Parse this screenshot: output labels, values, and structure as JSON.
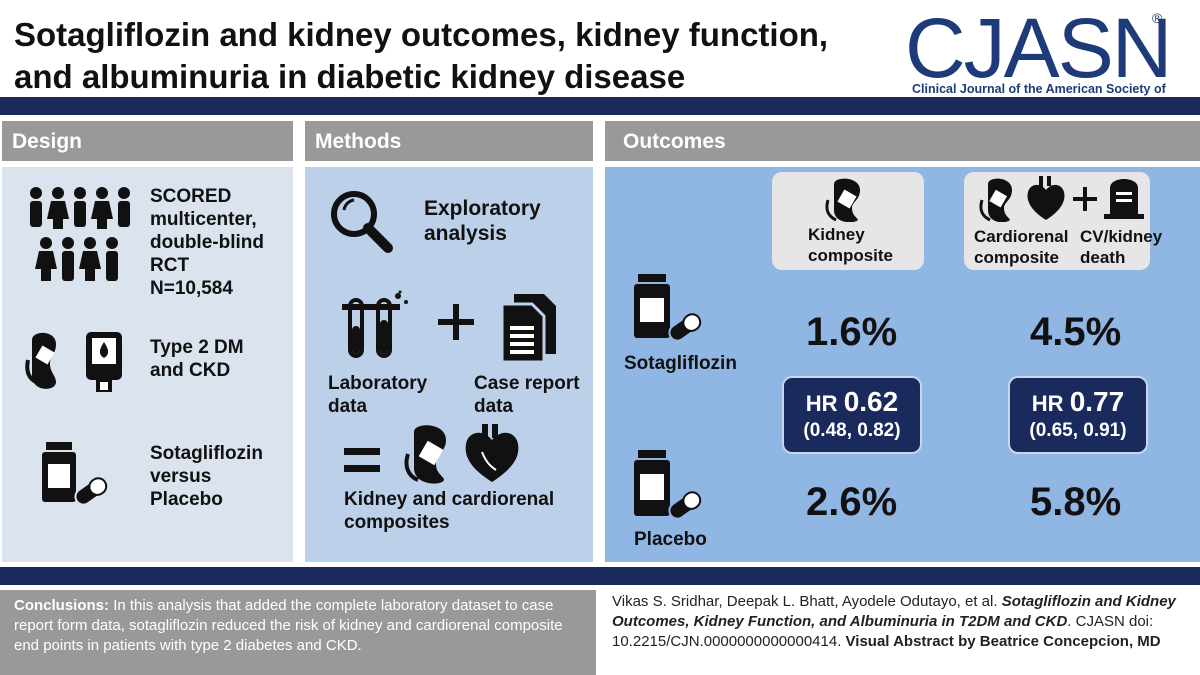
{
  "header": {
    "title_line1": "Sotagliflozin and kidney outcomes, kidney function,",
    "title_line2": "and albuminuria in diabetic kidney disease",
    "logo": "CJASN",
    "logo_mark": "®",
    "logo_subtitle": "Clinical Journal of the American Society of Nephrology"
  },
  "design": {
    "heading": "Design",
    "trial_lines": [
      "SCORED",
      "multicenter,",
      "double-blind",
      "RCT",
      "N=10,584"
    ],
    "population_lines": [
      "Type 2 DM",
      "and CKD"
    ],
    "comparison_lines": [
      "Sotagliflozin",
      "versus",
      "Placebo"
    ]
  },
  "methods": {
    "heading": "Methods",
    "analysis_lines": [
      "Exploratory",
      "analysis"
    ],
    "lab_lines": [
      "Laboratory",
      "data"
    ],
    "case_lines": [
      "Case report",
      "data"
    ],
    "result_lines": [
      "Kidney and cardiorenal",
      "composites"
    ]
  },
  "outcomes": {
    "heading": "Outcomes",
    "kidney_card_lines": [
      "Kidney",
      "composite"
    ],
    "cardiorenal_label_lines": [
      "Cardiorenal",
      "composite"
    ],
    "cv_label_lines": [
      "CV/kidney",
      "death"
    ],
    "sota_label": "Sotagliflozin",
    "placebo_label": "Placebo",
    "sota_kidney_pct": "1.6%",
    "sota_cardio_pct": "4.5%",
    "placebo_kidney_pct": "2.6%",
    "placebo_cardio_pct": "5.8%",
    "hr_prefix": "HR",
    "hr_kidney_value": "0.62",
    "hr_kidney_ci": "(0.48, 0.82)",
    "hr_cardio_value": "0.77",
    "hr_cardio_ci": "(0.65, 0.91)"
  },
  "footer": {
    "conclusions_label": "Conclusions:",
    "conclusions_text": "In this analysis that added the complete laboratory dataset to case report form data, sotagliflozin reduced the risk of kidney and cardiorenal composite end points in patients with type 2 diabetes and CKD.",
    "cite_authors": "Vikas S. Sridhar, Deepak L. Bhatt, Ayodele Odutayo, et al.",
    "cite_title": "Sotagliflozin and Kidney Outcomes, Kidney Function, and Albuminuria in T2DM and CKD",
    "cite_doi": ". CJASN doi: 10.2215/CJN.0000000000000414.",
    "cite_credit": "Visual Abstract by Beatrice Concepcion, MD"
  },
  "colors": {
    "navy": "#1b2a5c",
    "logo_blue": "#1e3a78",
    "panel_light": "#dae3ee",
    "panel_mid": "#bcd0ea",
    "panel_outcomes": "#90b6e4",
    "header_gray": "#999999"
  }
}
